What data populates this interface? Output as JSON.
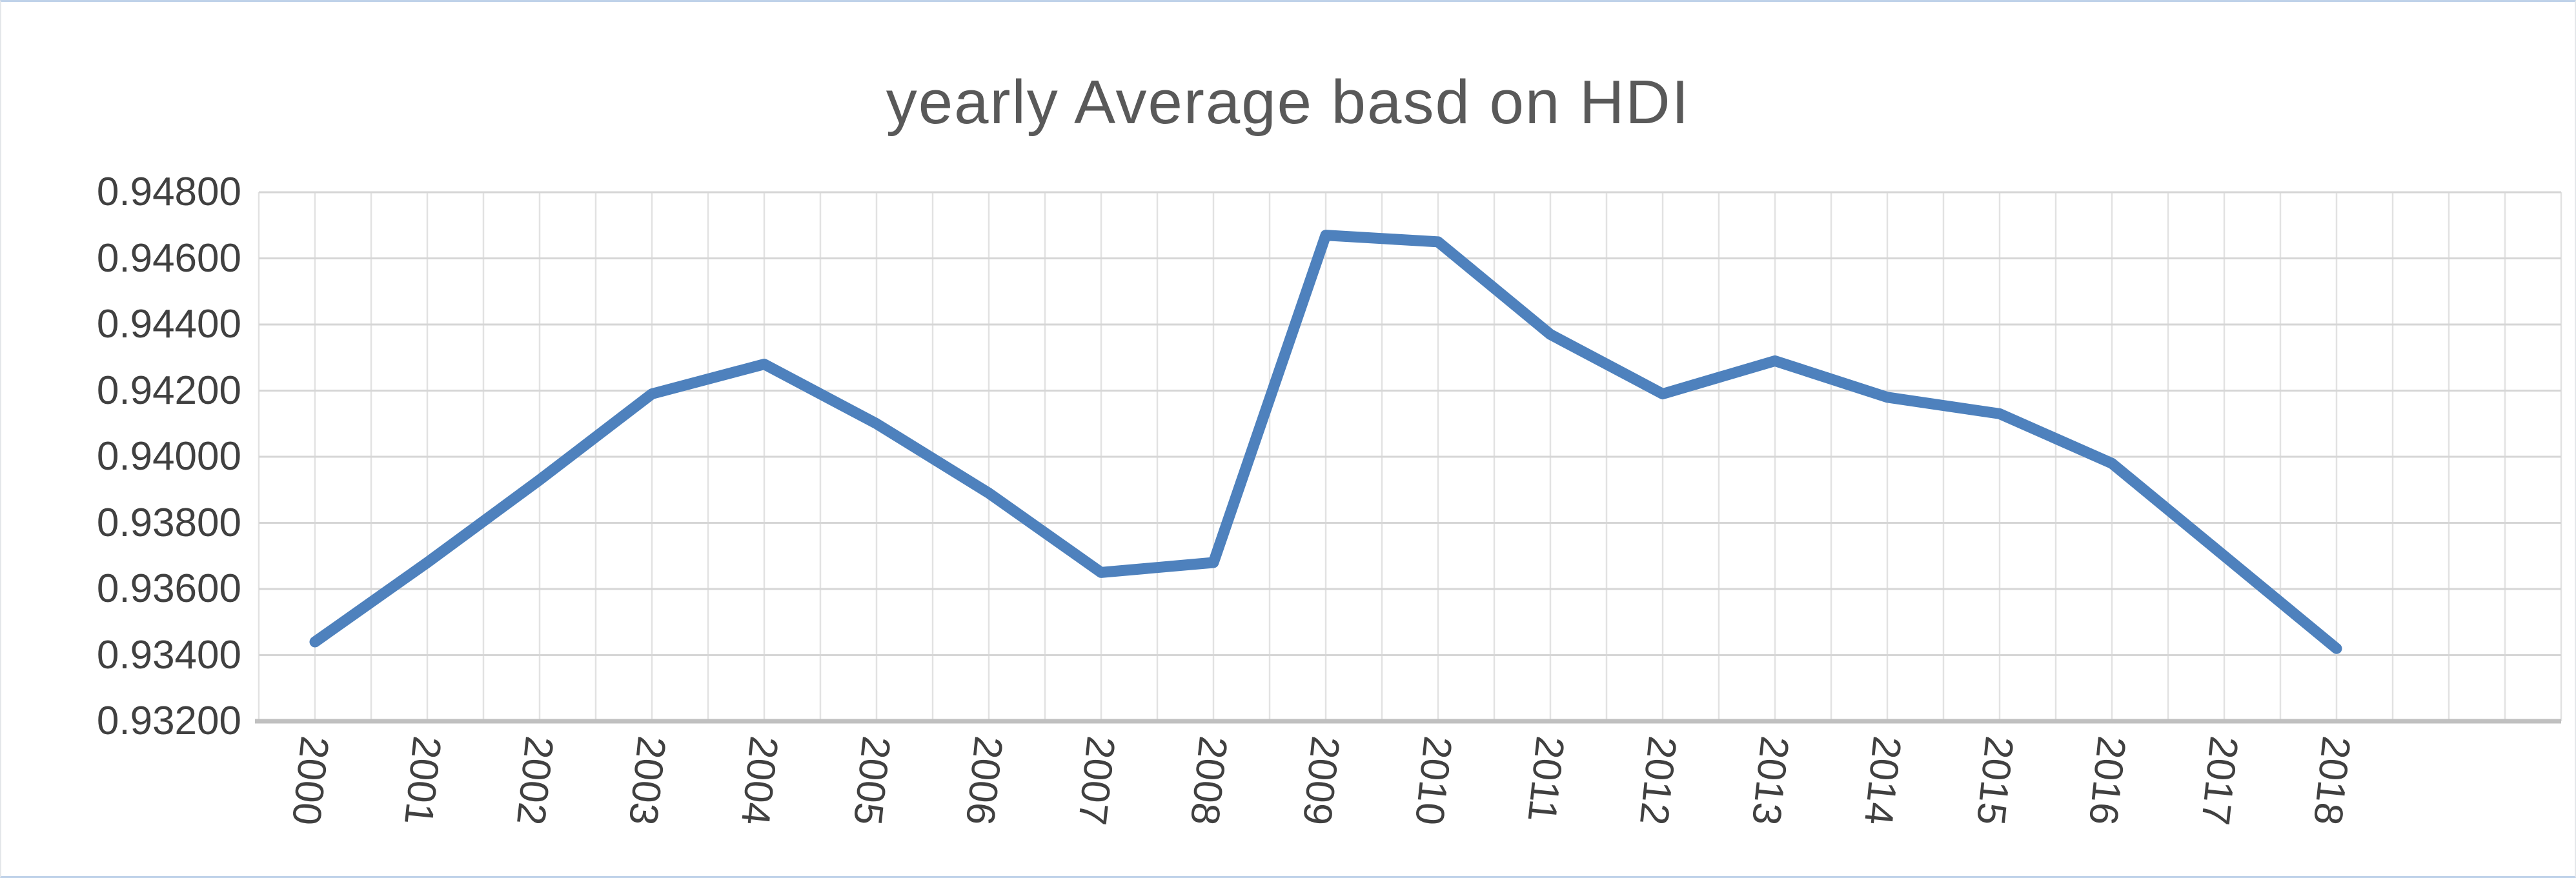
{
  "chart_data": {
    "type": "line",
    "title": "yearly Average basd on HDI",
    "categories": [
      "2000",
      "2001",
      "2002",
      "2003",
      "2004",
      "2005",
      "2006",
      "2007",
      "2008",
      "2009",
      "2010",
      "2011",
      "2012",
      "2013",
      "2014",
      "2015",
      "2016",
      "2017",
      "2018"
    ],
    "series": [
      {
        "name": "yearly Average basd on HDI",
        "values": [
          0.9344,
          0.9368,
          0.9393,
          0.9419,
          0.9428,
          0.941,
          0.9389,
          0.9365,
          0.9368,
          0.9467,
          0.9465,
          0.9437,
          0.9419,
          0.9429,
          0.9418,
          0.9413,
          0.9398,
          0.937,
          0.9342
        ]
      }
    ],
    "xlabel": "",
    "ylabel": "",
    "ylim": [
      0.932,
      0.948
    ],
    "ytick_step": 0.002,
    "ytick_labels": [
      "0.94800",
      "0.94600",
      "0.94400",
      "0.94200",
      "0.94000",
      "0.93800",
      "0.93600",
      "0.93400",
      "0.93200"
    ],
    "grid": "on",
    "legend": "none",
    "colors": {
      "line": "#4E81BD",
      "title_text": "#595959",
      "tick_text": "#404040",
      "h_gridline": "#D6D6D6",
      "v_gridline": "#E2E2E2",
      "axis_line": "#C0C0C0",
      "background": "#FFFFFF"
    }
  }
}
